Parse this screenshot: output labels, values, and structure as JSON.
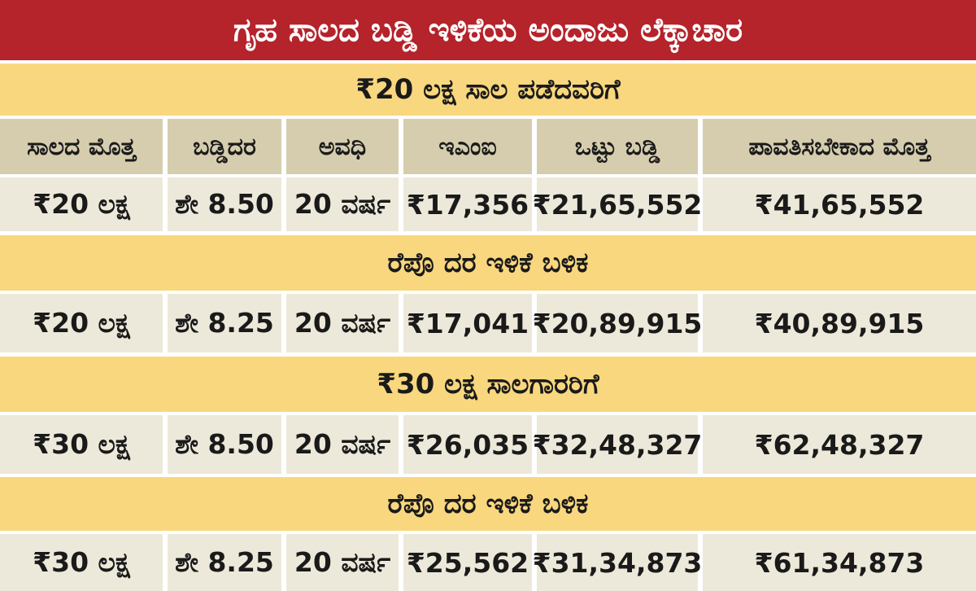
{
  "title": "ಗೃಹ ಸಾಲದ ಬಡ್ಡಿ ಇಳಿಕೆಯ ಅಂದಾಜು ಲೆಕ್ಕಾಚಾರ",
  "columns": [
    "ಸಾಲದ ಮೊತ್ತ",
    "ಬಡ್ಡಿದರ",
    "ಅವಧಿ",
    "ಇಎಂಐ",
    "ಒಟ್ಟು ಬಡ್ಡಿ",
    "ಪಾವತಿಸಬೇಕಾದ ಮೊತ್ತ"
  ],
  "sections": [
    {
      "heading": "₹20 ಲಕ್ಷ ಸಾಲ ಪಡೆದವರಿಗೆ",
      "row": [
        "₹20 ಲಕ್ಷ",
        "ಶೇ 8.50",
        "20 ವರ್ಷ",
        "₹17,356",
        "₹21,65,552",
        "₹41,65,552"
      ]
    },
    {
      "heading": "ರೆಪೊ ದರ ಇಳಿಕೆ ಬಳಿಕ",
      "row": [
        "₹20 ಲಕ್ಷ",
        "ಶೇ 8.25",
        "20 ವರ್ಷ",
        "₹17,041",
        "₹20,89,915",
        "₹40,89,915"
      ]
    },
    {
      "heading": "₹30 ಲಕ್ಷ ಸಾಲಗಾರರಿಗೆ",
      "row": [
        "₹30 ಲಕ್ಷ",
        "ಶೇ 8.50",
        "20 ವರ್ಷ",
        "₹26,035",
        "₹32,48,327",
        "₹62,48,327"
      ]
    },
    {
      "heading": "ರೆಪೊ ದರ ಇಳಿಕೆ ಬಳಿಕ",
      "row": [
        "₹30 ಲಕ್ಷ",
        "ಶೇ 8.25",
        "20 ವರ್ಷ",
        "₹25,562",
        "₹31,34,873",
        "₹61,34,873"
      ]
    }
  ]
}
